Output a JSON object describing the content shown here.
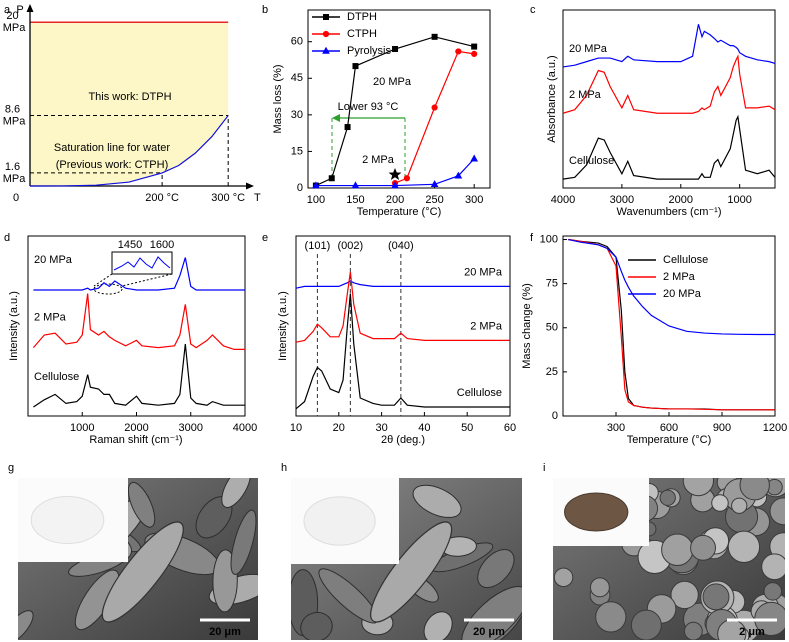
{
  "chart_data": [
    {
      "panel": "a",
      "type": "line",
      "x_label": "T",
      "y_label": "P",
      "xlim": [
        0,
        330
      ],
      "ylim": [
        0,
        21
      ],
      "xticks": [
        0,
        {
          "value": 200,
          "label": "200 °C"
        },
        {
          "value": 300,
          "label": "300 °C"
        }
      ],
      "yticks": [
        {
          "value": 1.6,
          "label": "1.6 MPa"
        },
        {
          "value": 8.6,
          "label": "8.6 MPa"
        },
        {
          "value": 20,
          "label": "20 MPa"
        }
      ],
      "x": [
        0,
        50,
        100,
        150,
        200,
        225,
        250,
        275,
        300
      ],
      "series": [
        {
          "name": "Saturation line for water",
          "color": "#1010e0",
          "values": [
            0,
            0.01,
            0.1,
            0.48,
            1.6,
            2.5,
            4.0,
            6.0,
            8.6
          ]
        }
      ],
      "annotations": [
        "This work: DTPH",
        "(Previous work: CTPH)"
      ],
      "region_color": "#fdf7c8",
      "limit_color": "#e8242b"
    },
    {
      "panel": "b",
      "type": "line",
      "x_label": "Temperature (°C)",
      "y_label": "Mass loss (%)",
      "xlim": [
        90,
        320
      ],
      "ylim": [
        0,
        73
      ],
      "xticks": [
        100,
        150,
        200,
        250,
        300
      ],
      "yticks": [
        0,
        15,
        30,
        45,
        60
      ],
      "legend": "top-left",
      "series": [
        {
          "name": "DTPH",
          "color": "#000000",
          "marker": "square",
          "x": [
            100,
            120,
            140,
            150,
            200,
            250,
            300
          ],
          "values": [
            1,
            4,
            25,
            50,
            57,
            62,
            58
          ]
        },
        {
          "name": "CTPH",
          "color": "#ff0000",
          "marker": "circle",
          "x": [
            200,
            215,
            250,
            280,
            300
          ],
          "values": [
            2,
            4,
            33,
            56,
            55
          ]
        },
        {
          "name": "Pyrolysis",
          "color": "#0000ff",
          "marker": "triangle",
          "x": [
            100,
            150,
            200,
            250,
            280,
            300
          ],
          "values": [
            1,
            1,
            1,
            1.5,
            5,
            12
          ]
        }
      ],
      "annotations": [
        "20 MPa",
        "2 MPa",
        "Lower 93 °C"
      ],
      "annotation_color": "#2ca02c"
    },
    {
      "panel": "c",
      "type": "line",
      "x_label": "Wavenumbers (cm⁻¹)",
      "y_label": "Absorbance (a.u.)",
      "xlim": [
        4000,
        400
      ],
      "ylim": [
        0,
        1
      ],
      "xticks": [
        4000,
        3000,
        2000,
        1000
      ],
      "x": [
        4000,
        3800,
        3600,
        3400,
        3300,
        3200,
        3000,
        2900,
        2800,
        2400,
        2000,
        1800,
        1700,
        1640,
        1600,
        1500,
        1430,
        1370,
        1320,
        1160,
        1110,
        1060,
        1030,
        1000,
        900,
        700,
        500,
        400
      ],
      "series": [
        {
          "name": "20 MPa",
          "color": "#0000ff",
          "values": [
            0.68,
            0.69,
            0.71,
            0.73,
            0.73,
            0.73,
            0.71,
            0.74,
            0.72,
            0.71,
            0.71,
            0.74,
            0.92,
            0.85,
            0.88,
            0.86,
            0.84,
            0.82,
            0.83,
            0.8,
            0.8,
            0.79,
            0.78,
            0.76,
            0.74,
            0.72,
            0.71,
            0.7
          ]
        },
        {
          "name": "2 MPa",
          "color": "#ff0000",
          "values": [
            0.42,
            0.44,
            0.52,
            0.66,
            0.65,
            0.57,
            0.45,
            0.52,
            0.44,
            0.42,
            0.42,
            0.42,
            0.43,
            0.45,
            0.44,
            0.46,
            0.54,
            0.57,
            0.52,
            0.62,
            0.68,
            0.72,
            0.74,
            0.64,
            0.45,
            0.45,
            0.46,
            0.44
          ]
        },
        {
          "name": "Cellulose",
          "color": "#000000",
          "values": [
            0.05,
            0.06,
            0.13,
            0.28,
            0.27,
            0.2,
            0.08,
            0.15,
            0.07,
            0.05,
            0.05,
            0.05,
            0.05,
            0.08,
            0.06,
            0.06,
            0.14,
            0.16,
            0.12,
            0.22,
            0.3,
            0.38,
            0.4,
            0.33,
            0.1,
            0.08,
            0.1,
            0.06
          ]
        }
      ]
    },
    {
      "panel": "d",
      "type": "line",
      "x_label": "Raman shift (cm⁻¹)",
      "y_label": "Intensity (a.u.)",
      "xlim": [
        0,
        4000
      ],
      "ylim": [
        0,
        1
      ],
      "xticks": [
        1000,
        2000,
        3000,
        4000
      ],
      "x": [
        100,
        300,
        500,
        700,
        900,
        1000,
        1100,
        1150,
        1300,
        1400,
        1500,
        1600,
        1800,
        2000,
        2100,
        2400,
        2700,
        2800,
        2900,
        3000,
        3100,
        3300,
        3400,
        3600,
        3800,
        4000
      ],
      "series": [
        {
          "name": "20 MPa",
          "color": "#0000ff",
          "values": [
            0.7,
            0.7,
            0.7,
            0.7,
            0.7,
            0.7,
            0.71,
            0.7,
            0.71,
            0.74,
            0.72,
            0.75,
            0.71,
            0.7,
            0.7,
            0.7,
            0.71,
            0.78,
            0.88,
            0.72,
            0.7,
            0.7,
            0.7,
            0.7,
            0.7,
            0.7
          ]
        },
        {
          "name": "2 MPa",
          "color": "#ff0000",
          "values": [
            0.38,
            0.45,
            0.46,
            0.4,
            0.41,
            0.45,
            0.68,
            0.48,
            0.45,
            0.47,
            0.44,
            0.42,
            0.39,
            0.42,
            0.39,
            0.38,
            0.39,
            0.45,
            0.62,
            0.4,
            0.38,
            0.42,
            0.45,
            0.39,
            0.37,
            0.37
          ]
        },
        {
          "name": "Cellulose",
          "color": "#000000",
          "values": [
            0.05,
            0.09,
            0.12,
            0.07,
            0.08,
            0.11,
            0.23,
            0.16,
            0.15,
            0.12,
            0.12,
            0.07,
            0.06,
            0.11,
            0.07,
            0.06,
            0.07,
            0.12,
            0.4,
            0.1,
            0.07,
            0.06,
            0.08,
            0.06,
            0.06,
            0.06
          ]
        }
      ],
      "annotations": [
        "1450",
        "1600"
      ]
    },
    {
      "panel": "e",
      "type": "line",
      "x_label": "2θ (deg.)",
      "y_label": "Intensity (a.u.)",
      "xlim": [
        10,
        60
      ],
      "ylim": [
        0,
        1
      ],
      "xticks": [
        10,
        20,
        30,
        40,
        50,
        60
      ],
      "peaks": [
        {
          "value": 15,
          "label": "(101)"
        },
        {
          "value": 22.7,
          "label": "(002)"
        },
        {
          "value": 34.5,
          "label": "(040)"
        }
      ],
      "x": [
        10,
        12,
        14,
        15,
        16,
        18,
        20,
        21,
        22,
        22.7,
        23.5,
        25,
        28,
        30,
        33,
        34.5,
        36,
        40,
        45,
        50,
        55,
        60
      ],
      "series": [
        {
          "name": "20 MPa",
          "color": "#0000ff",
          "values": [
            0.71,
            0.72,
            0.72,
            0.72,
            0.72,
            0.72,
            0.72,
            0.73,
            0.74,
            0.75,
            0.74,
            0.73,
            0.72,
            0.72,
            0.72,
            0.72,
            0.72,
            0.72,
            0.72,
            0.72,
            0.72,
            0.72
          ]
        },
        {
          "name": "2 MPa",
          "color": "#ff0000",
          "values": [
            0.41,
            0.42,
            0.47,
            0.51,
            0.49,
            0.44,
            0.44,
            0.5,
            0.68,
            0.8,
            0.62,
            0.46,
            0.43,
            0.43,
            0.43,
            0.46,
            0.43,
            0.42,
            0.42,
            0.42,
            0.42,
            0.42
          ]
        },
        {
          "name": "Cellulose",
          "color": "#000000",
          "values": [
            0.04,
            0.08,
            0.22,
            0.27,
            0.25,
            0.15,
            0.13,
            0.2,
            0.5,
            0.68,
            0.4,
            0.1,
            0.07,
            0.06,
            0.06,
            0.1,
            0.06,
            0.05,
            0.05,
            0.05,
            0.05,
            0.05
          ]
        }
      ]
    },
    {
      "panel": "f",
      "type": "line",
      "x_label": "Temperature (°C)",
      "y_label": "Mass change (%)",
      "xlim": [
        0,
        1200
      ],
      "ylim": [
        0,
        102
      ],
      "xticks": [
        300,
        600,
        900,
        1200
      ],
      "yticks": [
        0,
        25,
        50,
        75,
        100
      ],
      "legend": "top-right",
      "x": [
        30,
        100,
        200,
        250,
        300,
        330,
        350,
        370,
        400,
        450,
        500,
        600,
        700,
        800,
        900,
        1000,
        1100,
        1200
      ],
      "series": [
        {
          "name": "Cellulose",
          "color": "#000000",
          "values": [
            100,
            99,
            98,
            96,
            90,
            60,
            25,
            10,
            6,
            5,
            4.5,
            4,
            4,
            4,
            3.5,
            3.5,
            3.5,
            3.5
          ]
        },
        {
          "name": "2 MPa",
          "color": "#ff0000",
          "values": [
            100,
            99,
            97,
            95,
            85,
            45,
            15,
            8,
            6,
            5,
            4.5,
            4,
            4,
            3.8,
            3.5,
            3.5,
            3.5,
            3.5
          ]
        },
        {
          "name": "20 MPa",
          "color": "#0000ff",
          "values": [
            100,
            98.5,
            97,
            95,
            90,
            82,
            77,
            73,
            68,
            62,
            57,
            51,
            48,
            47,
            46.5,
            46.3,
            46.2,
            46.2
          ]
        }
      ]
    }
  ],
  "images": [
    {
      "panel": "g",
      "scale_bar": "20 μm"
    },
    {
      "panel": "h",
      "scale_bar": "20 μm"
    },
    {
      "panel": "i",
      "scale_bar": "2 μm"
    }
  ]
}
